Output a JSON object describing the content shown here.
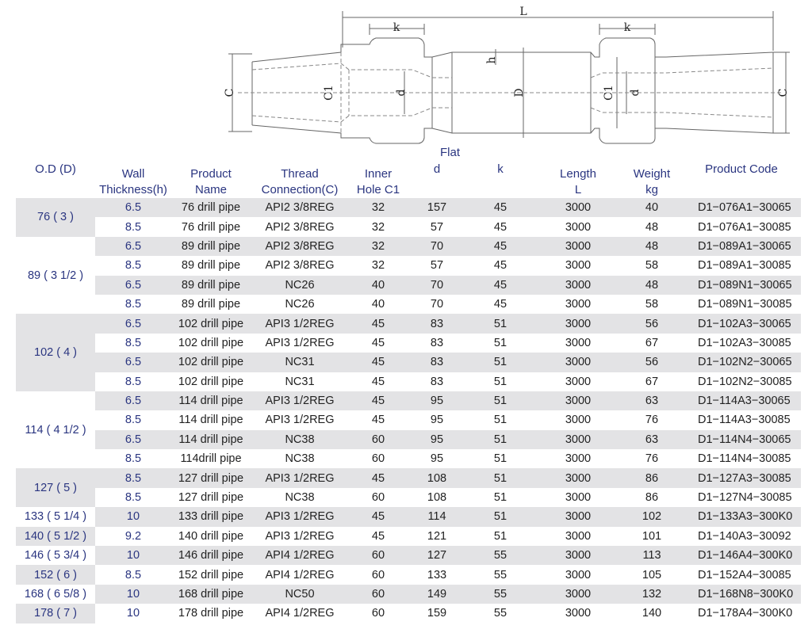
{
  "drawing": {
    "labels": {
      "L": "L",
      "k_left": "k",
      "k_right": "k",
      "h": "h",
      "C_left": "C",
      "C_right": "C",
      "C1_left": "C1",
      "C1_right": "C1",
      "d_left": "d",
      "d_right": "d",
      "D": "D"
    }
  },
  "table": {
    "flat_label": "Flat",
    "headers": {
      "od": [
        "O.D (D)"
      ],
      "wall": [
        "Wall",
        "Thickness(h)"
      ],
      "product": [
        "Product",
        "Name"
      ],
      "thread": [
        "Thread",
        "Connection(C)"
      ],
      "inner": [
        "Inner",
        "Hole C1"
      ],
      "d": [
        "d"
      ],
      "k": [
        "k"
      ],
      "length": [
        "Length",
        "L"
      ],
      "weight": [
        "Weight",
        "kg"
      ],
      "code": [
        "Product Code"
      ]
    },
    "groups": [
      {
        "od": "76 ( 3 )",
        "rows": [
          [
            "6.5",
            "76 drill pipe",
            "API2 3/8REG",
            "32",
            "157",
            "45",
            "3000",
            "40",
            "D1−076A1−30065"
          ],
          [
            "8.5",
            "76 drill pipe",
            "API2 3/8REG",
            "32",
            "57",
            "45",
            "3000",
            "48",
            "D1−076A1−30085"
          ]
        ]
      },
      {
        "od": "89 ( 3 1/2 )",
        "rows": [
          [
            "6.5",
            "89 drill pipe",
            "API2 3/8REG",
            "32",
            "70",
            "45",
            "3000",
            "48",
            "D1−089A1−30065"
          ],
          [
            "8.5",
            "89 drill pipe",
            "API2 3/8REG",
            "32",
            "57",
            "45",
            "3000",
            "58",
            "D1−089A1−30085"
          ],
          [
            "6.5",
            "89 drill pipe",
            "NC26",
            "40",
            "70",
            "45",
            "3000",
            "48",
            "D1−089N1−30065"
          ],
          [
            "8.5",
            "89 drill pipe",
            "NC26",
            "40",
            "70",
            "45",
            "3000",
            "58",
            "D1−089N1−30085"
          ]
        ]
      },
      {
        "od": "102 ( 4 )",
        "rows": [
          [
            "6.5",
            "102 drill pipe",
            "API3 1/2REG",
            "45",
            "83",
            "51",
            "3000",
            "56",
            "D1−102A3−30065"
          ],
          [
            "8.5",
            "102 drill pipe",
            "API3 1/2REG",
            "45",
            "83",
            "51",
            "3000",
            "67",
            "D1−102A3−30085"
          ],
          [
            "6.5",
            "102 drill pipe",
            "NC31",
            "45",
            "83",
            "51",
            "3000",
            "56",
            "D1−102N2−30065"
          ],
          [
            "8.5",
            "102 drill pipe",
            "NC31",
            "45",
            "83",
            "51",
            "3000",
            "67",
            "D1−102N2−30085"
          ]
        ]
      },
      {
        "od": "114 ( 4 1/2 )",
        "rows": [
          [
            "6.5",
            "114 drill pipe",
            "API3 1/2REG",
            "45",
            "95",
            "51",
            "3000",
            "63",
            "D1−114A3−30065"
          ],
          [
            "8.5",
            "114 drill pipe",
            "API3 1/2REG",
            "45",
            "95",
            "51",
            "3000",
            "76",
            "D1−114A3−30085"
          ],
          [
            "6.5",
            "114 drill pipe",
            "NC38",
            "60",
            "95",
            "51",
            "3000",
            "63",
            "D1−114N4−30065"
          ],
          [
            "8.5",
            "114drill pipe",
            "NC38",
            "60",
            "95",
            "51",
            "3000",
            "76",
            "D1−114N4−30085"
          ]
        ]
      },
      {
        "od": "127 ( 5 )",
        "rows": [
          [
            "8.5",
            "127 drill pipe",
            "API3 1/2REG",
            "45",
            "108",
            "51",
            "3000",
            "86",
            "D1−127A3−30085"
          ],
          [
            "8.5",
            "127 drill pipe",
            "NC38",
            "60",
            "108",
            "51",
            "3000",
            "86",
            "D1−127N4−30085"
          ]
        ]
      },
      {
        "od": "133 ( 5 1/4 )",
        "rows": [
          [
            "10",
            "133 drill pipe",
            "API3 1/2REG",
            "45",
            "114",
            "51",
            "3000",
            "102",
            "D1−133A3−300K0"
          ]
        ]
      },
      {
        "od": "140 ( 5 1/2 )",
        "rows": [
          [
            "9.2",
            "140 drill pipe",
            "API3 1/2REG",
            "45",
            "121",
            "51",
            "3000",
            "101",
            "D1−140A3−30092"
          ]
        ]
      },
      {
        "od": "146 ( 5 3/4 )",
        "rows": [
          [
            "10",
            "146 drill pipe",
            "API4 1/2REG",
            "60",
            "127",
            "55",
            "3000",
            "113",
            "D1−146A4−300K0"
          ]
        ]
      },
      {
        "od": "152 ( 6 )",
        "rows": [
          [
            "8.5",
            "152 drill pipe",
            "API4 1/2REG",
            "60",
            "133",
            "55",
            "3000",
            "105",
            "D1−152A4−30085"
          ]
        ]
      },
      {
        "od": "168 ( 6 5/8 )",
        "rows": [
          [
            "10",
            "168 drill pipe",
            "NC50",
            "60",
            "149",
            "55",
            "3000",
            "132",
            "D1−168N8−300K0"
          ]
        ]
      },
      {
        "od": "178 ( 7 )",
        "rows": [
          [
            "10",
            "178 drill pipe",
            "API4 1/2REG",
            "60",
            "159",
            "55",
            "3000",
            "140",
            "D1−178A4−300K0"
          ]
        ]
      }
    ]
  }
}
